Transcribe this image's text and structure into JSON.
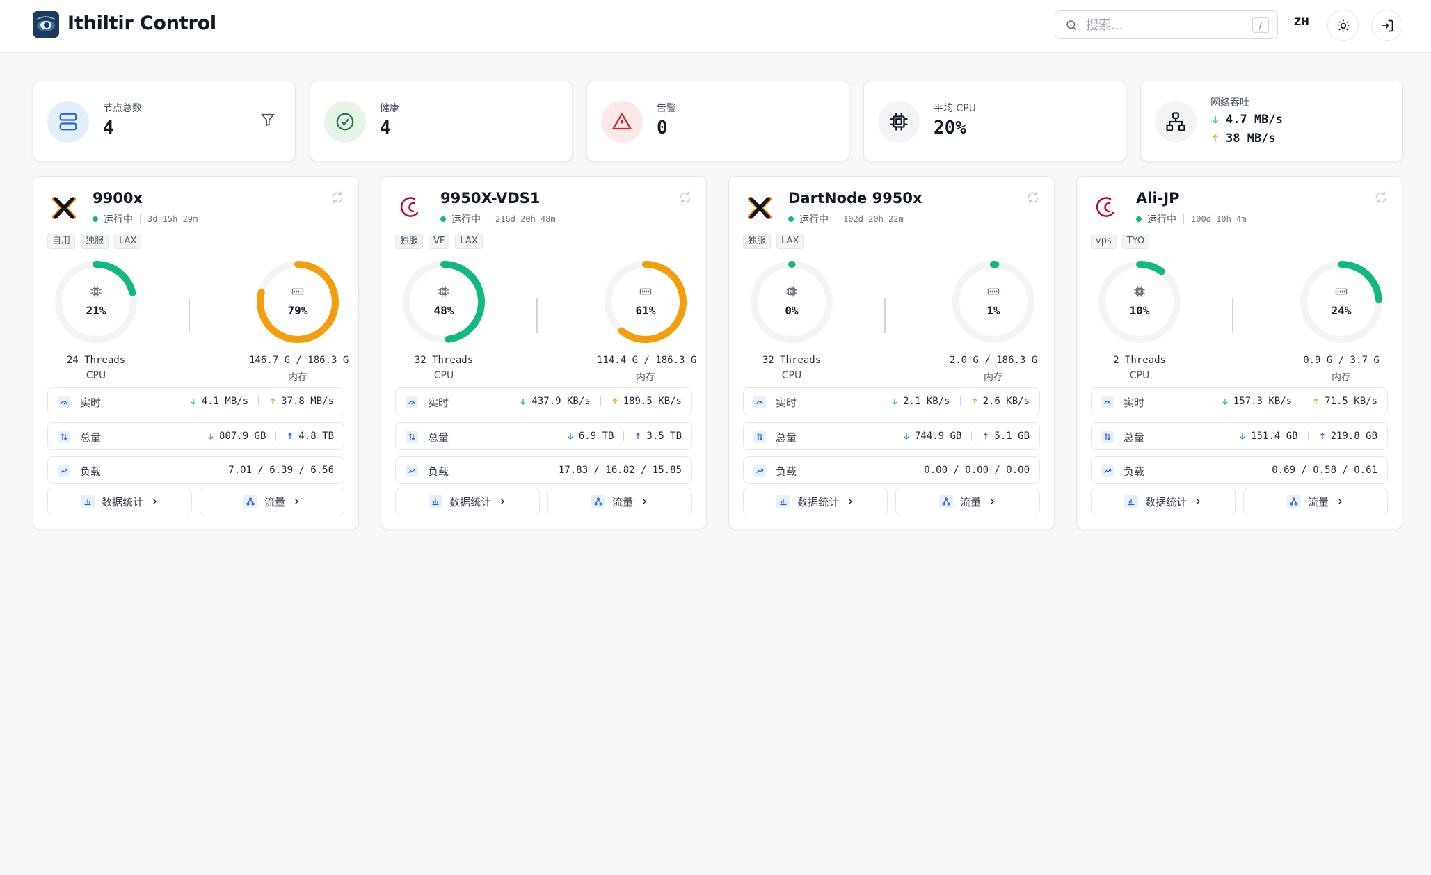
{
  "header": {
    "title": "Ithiltir Control",
    "search_placeholder": "搜索...",
    "search_shortcut": "/",
    "lang": "ZH"
  },
  "stats": {
    "total": {
      "label": "节点总数",
      "value": "4"
    },
    "healthy": {
      "label": "健康",
      "value": "4"
    },
    "alerts": {
      "label": "告警",
      "value": "0"
    },
    "cpu": {
      "label": "平均 CPU",
      "value": "20%"
    },
    "network": {
      "label": "网络吞吐",
      "down": "4.7 MB/s",
      "up": "38 MB/s"
    }
  },
  "colors": {
    "green": "#10b981",
    "orange": "#f59e0b",
    "track": "#f3f4f6",
    "blue": "#2563eb",
    "red": "#dc2626"
  },
  "labels": {
    "realtime": "实时",
    "total": "总量",
    "load": "负载",
    "stats_btn": "数据统计",
    "traffic_btn": "流量",
    "cpu": "CPU",
    "mem": "内存"
  },
  "nodes": [
    {
      "name": "9900x",
      "os": "proxmox",
      "status": "运行中",
      "uptime": "3d 15h 29m",
      "tags": [
        "自用",
        "独服",
        "LAX"
      ],
      "cpu_pct": 21,
      "cpu_text": "21%",
      "threads": "24 Threads",
      "mem_pct": 79,
      "mem_text": "79%",
      "mem_used": "146.7 G / 186.3 G",
      "rt_down": "4.1 MB/s",
      "rt_up": "37.8 MB/s",
      "tot_down": "807.9 GB",
      "tot_up": "4.8 TB",
      "load": "7.01 / 6.39 / 6.56"
    },
    {
      "name": "9950X-VDS1",
      "os": "debian",
      "status": "运行中",
      "uptime": "216d 20h 48m",
      "tags": [
        "独服",
        "VF",
        "LAX"
      ],
      "cpu_pct": 48,
      "cpu_text": "48%",
      "threads": "32 Threads",
      "mem_pct": 61,
      "mem_text": "61%",
      "mem_used": "114.4 G / 186.3 G",
      "rt_down": "437.9 KB/s",
      "rt_up": "189.5 KB/s",
      "tot_down": "6.9 TB",
      "tot_up": "3.5 TB",
      "load": "17.83 / 16.82 / 15.85"
    },
    {
      "name": "DartNode 9950x",
      "os": "proxmox",
      "status": "运行中",
      "uptime": "102d 20h 22m",
      "tags": [
        "独服",
        "LAX"
      ],
      "cpu_pct": 0,
      "cpu_text": "0%",
      "threads": "32 Threads",
      "mem_pct": 1,
      "mem_text": "1%",
      "mem_used": "2.0 G / 186.3 G",
      "rt_down": "2.1 KB/s",
      "rt_up": "2.6 KB/s",
      "tot_down": "744.9 GB",
      "tot_up": "5.1 GB",
      "load": "0.00 / 0.00 / 0.00"
    },
    {
      "name": "Ali-JP",
      "os": "debian",
      "status": "运行中",
      "uptime": "100d 10h 4m",
      "tags": [
        "vps",
        "TYO"
      ],
      "cpu_pct": 10,
      "cpu_text": "10%",
      "threads": "2 Threads",
      "mem_pct": 24,
      "mem_text": "24%",
      "mem_used": "0.9 G / 3.7 G",
      "rt_down": "157.3 KB/s",
      "rt_up": "71.5 KB/s",
      "tot_down": "151.4 GB",
      "tot_up": "219.8 GB",
      "load": "0.69 / 0.58 / 0.61"
    }
  ]
}
